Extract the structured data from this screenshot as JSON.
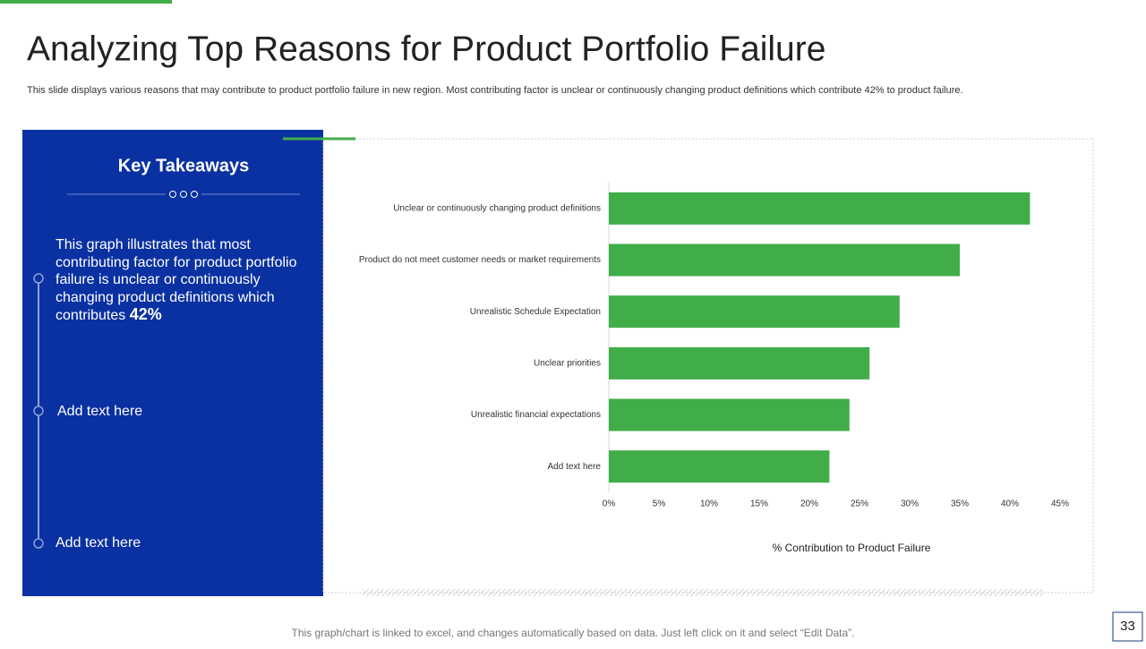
{
  "title": "Analyzing Top Reasons for Product Portfolio Failure",
  "subtitle": "This slide displays various reasons that may contribute to product portfolio failure in new region. Most contributing factor is unclear or continuously changing product definitions which contribute 42% to product failure.",
  "takeaways": {
    "heading": "Key Takeaways",
    "items": [
      "This graph illustrates that most contributing factor for product portfolio failure is unclear or continuously changing product definitions which contributes",
      "Add text here",
      "Add text here"
    ],
    "highlight": "42%"
  },
  "footer": "This graph/chart is linked to excel, and changes automatically based on data. Just left click on it and select “Edit Data”.",
  "page_number": "33",
  "chart_data": {
    "type": "hbar",
    "categories": [
      "Unclear or continuously changing product definitions",
      "Product do not meet customer needs or market requirements",
      "Unrealistic Schedule Expectation",
      "Unclear priorities",
      "Unrealistic financial expectations",
      "Add text here"
    ],
    "values": [
      42,
      35,
      29,
      26,
      24,
      22
    ],
    "color": "#41ad49",
    "x_label": "% Contribution  to Product Failure",
    "xlim": [
      0,
      45
    ],
    "xticks": [
      {
        "value": 0,
        "label": "0%"
      },
      {
        "value": 5,
        "label": "5%"
      },
      {
        "value": 10,
        "label": "10%"
      },
      {
        "value": 15,
        "label": "15%"
      },
      {
        "value": 20,
        "label": "20%"
      },
      {
        "value": 25,
        "label": "25%"
      },
      {
        "value": 30,
        "label": "30%"
      },
      {
        "value": 35,
        "label": "35%"
      },
      {
        "value": 40,
        "label": "40%"
      },
      {
        "value": 45,
        "label": "45%"
      }
    ],
    "grid": false
  }
}
